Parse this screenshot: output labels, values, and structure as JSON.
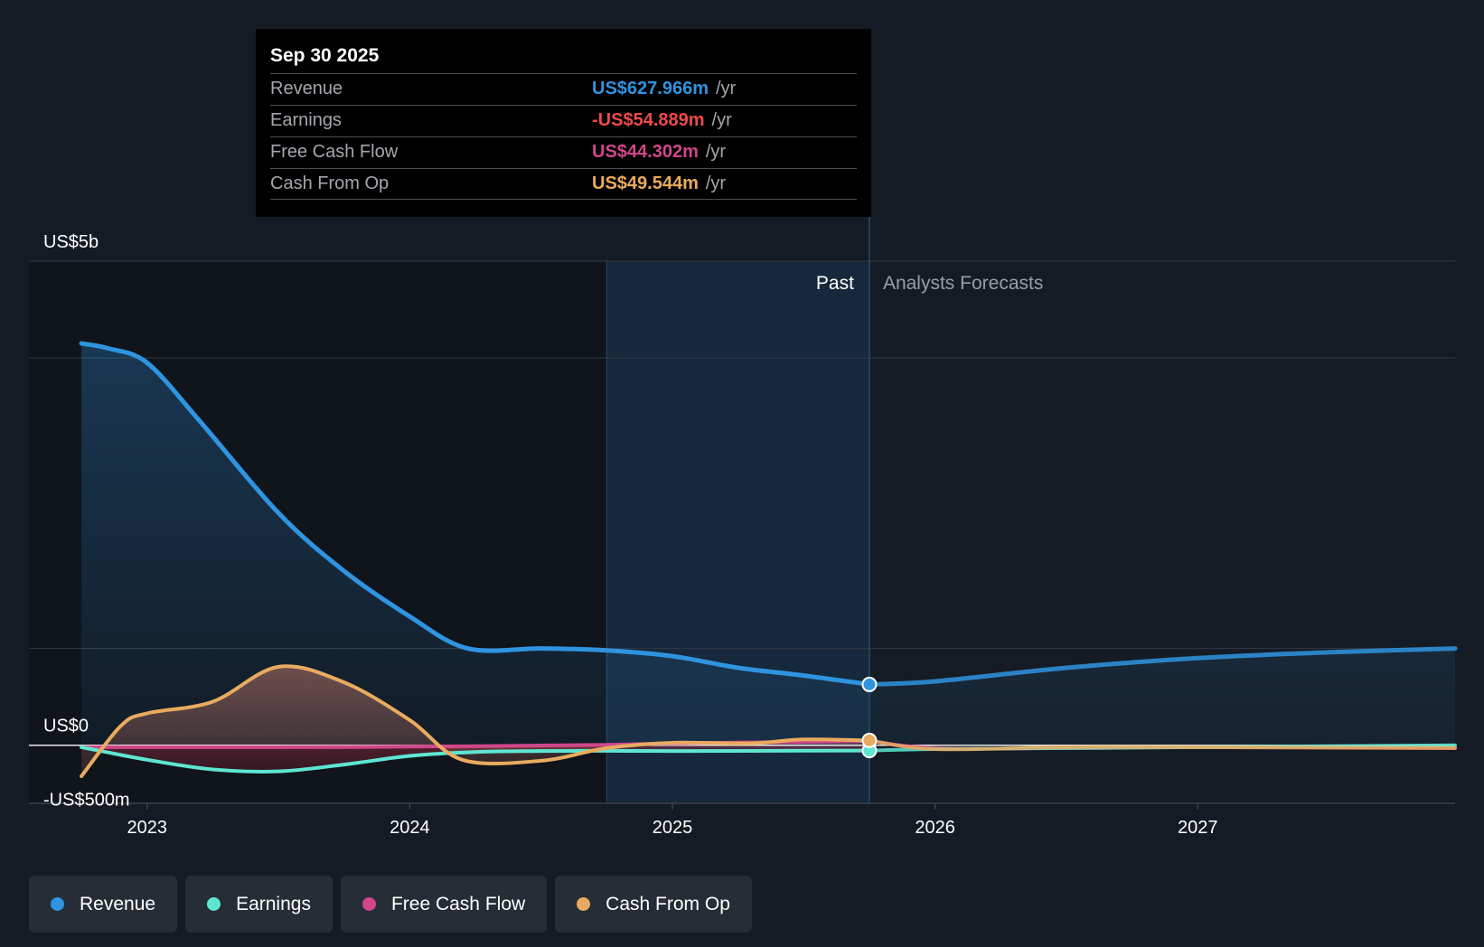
{
  "chart_data": {
    "type": "line",
    "title": "",
    "ylabel": "",
    "xlabel": "",
    "y_unit": "US$ millions",
    "ylim": [
      -600,
      5000
    ],
    "xlim": [
      2022.55,
      2027.98
    ],
    "y_tick_labels": [
      {
        "value": 5000,
        "label": "US$5b"
      },
      {
        "value": 0,
        "label": "US$0"
      },
      {
        "value": -500,
        "label": "-US$500m"
      }
    ],
    "x_ticks": [
      2023,
      2024,
      2025,
      2026,
      2027
    ],
    "x_tick_labels": [
      "2023",
      "2024",
      "2025",
      "2026",
      "2027"
    ],
    "past_label": "Past",
    "forecast_label": "Analysts Forecasts",
    "past_end_x": 2025.75,
    "highlight_start_x": 2024.75,
    "series": [
      {
        "name": "Revenue",
        "color": "#2f94e0",
        "past": [
          [
            2022.75,
            4150
          ],
          [
            2022.85,
            4100
          ],
          [
            2023.0,
            3950
          ],
          [
            2023.2,
            3350
          ],
          [
            2023.5,
            2400
          ],
          [
            2023.75,
            1800
          ],
          [
            2024.0,
            1330
          ],
          [
            2024.22,
            1000
          ],
          [
            2024.5,
            1000
          ],
          [
            2024.75,
            980
          ],
          [
            2025.0,
            920
          ],
          [
            2025.25,
            800
          ],
          [
            2025.5,
            720
          ],
          [
            2025.75,
            628
          ]
        ],
        "forecast": [
          [
            2025.75,
            628
          ],
          [
            2026.0,
            660
          ],
          [
            2026.5,
            800
          ],
          [
            2027.0,
            900
          ],
          [
            2027.5,
            960
          ],
          [
            2027.98,
            1000
          ]
        ]
      },
      {
        "name": "Earnings",
        "color": "#5ee6d3",
        "past": [
          [
            2022.75,
            -20
          ],
          [
            2023.0,
            -150
          ],
          [
            2023.25,
            -250
          ],
          [
            2023.5,
            -270
          ],
          [
            2023.75,
            -200
          ],
          [
            2024.0,
            -110
          ],
          [
            2024.25,
            -70
          ],
          [
            2024.5,
            -60
          ],
          [
            2024.75,
            -58
          ],
          [
            2025.0,
            -60
          ],
          [
            2025.5,
            -57
          ],
          [
            2025.75,
            -55
          ]
        ],
        "forecast": [
          [
            2025.75,
            -55
          ],
          [
            2026.0,
            -40
          ],
          [
            2026.5,
            -30
          ],
          [
            2027.0,
            -20
          ],
          [
            2027.98,
            0
          ]
        ]
      },
      {
        "name": "Free Cash Flow",
        "color": "#d0478a",
        "past": [
          [
            2022.75,
            -20
          ],
          [
            2023.5,
            -20
          ],
          [
            2024.0,
            -15
          ],
          [
            2024.75,
            5
          ],
          [
            2025.0,
            20
          ],
          [
            2025.5,
            35
          ],
          [
            2025.75,
            44
          ]
        ],
        "forecast": [
          [
            2025.75,
            44
          ],
          [
            2026.0,
            -30
          ],
          [
            2026.5,
            -30
          ],
          [
            2027.0,
            -20
          ],
          [
            2027.98,
            -30
          ]
        ]
      },
      {
        "name": "Cash From Op",
        "color": "#e9ab5f",
        "past": [
          [
            2022.75,
            -320
          ],
          [
            2022.9,
            200
          ],
          [
            2023.0,
            330
          ],
          [
            2023.25,
            450
          ],
          [
            2023.5,
            810
          ],
          [
            2023.75,
            650
          ],
          [
            2024.0,
            260
          ],
          [
            2024.2,
            -150
          ],
          [
            2024.5,
            -160
          ],
          [
            2024.75,
            -30
          ],
          [
            2025.0,
            25
          ],
          [
            2025.3,
            20
          ],
          [
            2025.5,
            60
          ],
          [
            2025.75,
            50
          ]
        ],
        "forecast": [
          [
            2025.75,
            50
          ],
          [
            2026.0,
            -40
          ],
          [
            2026.5,
            -20
          ],
          [
            2027.0,
            -20
          ],
          [
            2027.98,
            -30
          ]
        ]
      }
    ],
    "tooltip": {
      "date": "Sep 30 2025",
      "rows": [
        {
          "label": "Revenue",
          "value": "US$627.966m",
          "unit": "/yr",
          "color": "#2f94e0"
        },
        {
          "label": "Earnings",
          "value": "-US$54.889m",
          "unit": "/yr",
          "color": "#ee4a4a"
        },
        {
          "label": "Free Cash Flow",
          "value": "US$44.302m",
          "unit": "/yr",
          "color": "#d0478a"
        },
        {
          "label": "Cash From Op",
          "value": "US$49.544m",
          "unit": "/yr",
          "color": "#e9ab5f"
        }
      ]
    }
  },
  "legend": [
    {
      "label": "Revenue",
      "color": "#2f94e0"
    },
    {
      "label": "Earnings",
      "color": "#5ee6d3"
    },
    {
      "label": "Free Cash Flow",
      "color": "#d0478a"
    },
    {
      "label": "Cash From Op",
      "color": "#e9ab5f"
    }
  ]
}
